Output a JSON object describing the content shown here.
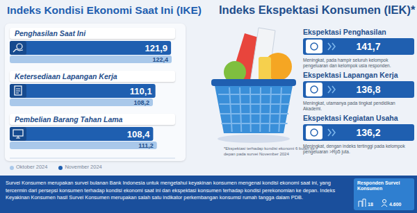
{
  "chart_data": {
    "type": "bar",
    "orientation": "horizontal",
    "title": "Indeks Kondisi Ekonomi Saat Ini (IKE)",
    "categories": [
      "Penghasilan Saat Ini",
      "Ketersediaan Lapangan Kerja",
      "Pembelian Barang Tahan Lama"
    ],
    "series": [
      {
        "name": "Oktober 2024",
        "color": "#a9c8ea",
        "values": [
          122.4,
          108.2,
          111.2
        ],
        "value_labels": [
          "122,4",
          "108,2",
          "111,2"
        ]
      },
      {
        "name": "November 2024",
        "color": "#1f5fb0",
        "values": [
          121.9,
          110.1,
          108.4
        ],
        "value_labels": [
          "121,9",
          "110,1",
          "108,4"
        ]
      }
    ],
    "xlim": [
      0,
      125
    ],
    "data_labels": true,
    "tick_labels": false,
    "legend": "bottom left"
  },
  "expectations": {
    "title": "Indeks Ekspektasi Konsumen (IEK)*",
    "items": [
      {
        "label": "Ekspektasi Penghasilan",
        "value": "141,7",
        "note": "Meningkat, pada hampir seluruh kelompok pengeluaran dan kelompok usia responden."
      },
      {
        "label": "Ekspektasi Lapangan Kerja",
        "value": "136,8",
        "note": "Meningkat, utamanya pada tingkat pendidikan Akademi."
      },
      {
        "label": "Ekspektasi Kegiatan Usaha",
        "value": "136,2",
        "note": "Meningkat, dengan indeks tertinggi pada kelompok pengeluaran >Rp5 juta."
      }
    ],
    "footnote": "*Ekspektasi terhadap kondisi ekonomi 6 bulan ke depan pada survei November 2024"
  },
  "footer": {
    "text": "Survei Konsumen merupakan survei bulanan Bank Indonesia untuk mengetahui keyakinan konsumen mengenai kondisi ekonomi saat ini, yang tercermin dari persepsi konsumen terhadap kondisi ekonomi saat ini dan ekspektasi konsumen terhadap kondisi perekonomian ke depan. Indeks Keyakinan Konsumen hasil Survei Konsumen merupakan salah satu indikator perkembangan konsumsi rumah tangga dalam PDB.",
    "respondents": {
      "title": "Responden Survei Konsumen",
      "cities": "18",
      "count": "4.600"
    }
  }
}
